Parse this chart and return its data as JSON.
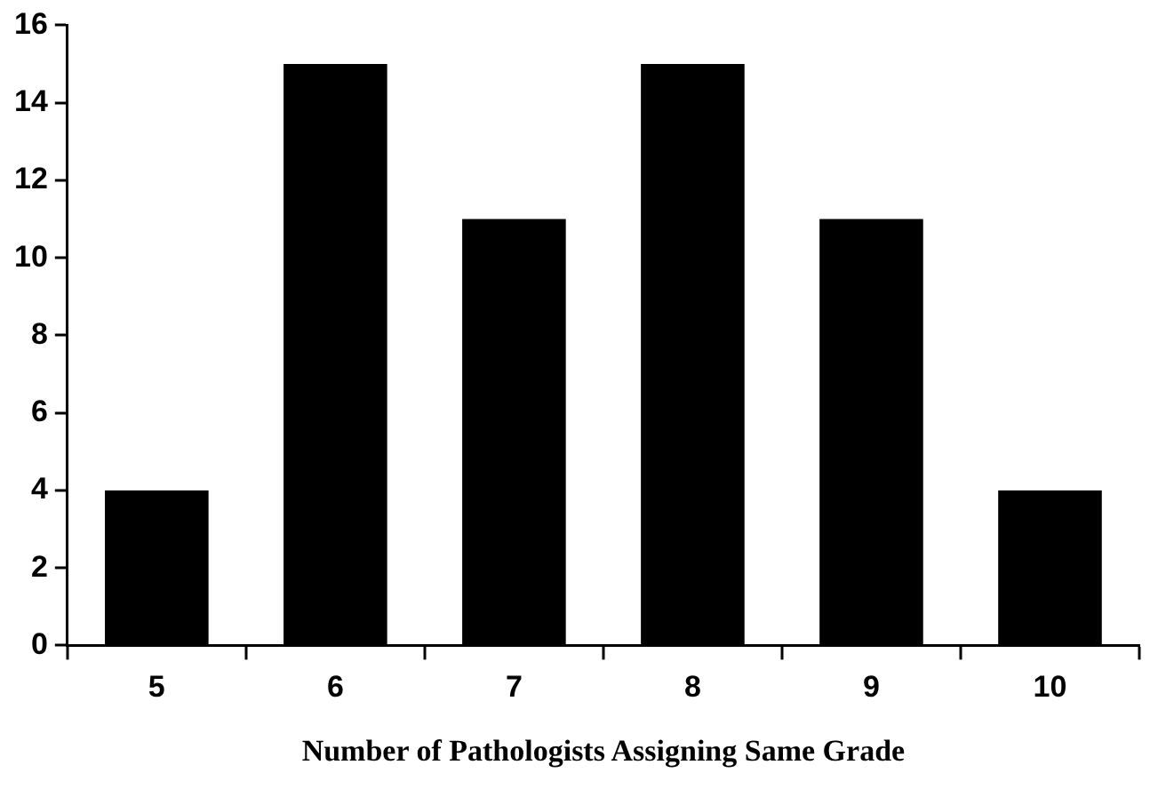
{
  "chart_data": {
    "type": "bar",
    "xlabel": "Number of Pathologists Assigning Same Grade",
    "categories": [
      "5",
      "6",
      "7",
      "8",
      "9",
      "10"
    ],
    "values": [
      4,
      15,
      11,
      15,
      11,
      4
    ],
    "color": "#000000",
    "ylim": [
      0,
      16
    ],
    "yticks": [
      0,
      2,
      4,
      6,
      8,
      10,
      12,
      14,
      16
    ],
    "grid": false,
    "legend": false
  }
}
